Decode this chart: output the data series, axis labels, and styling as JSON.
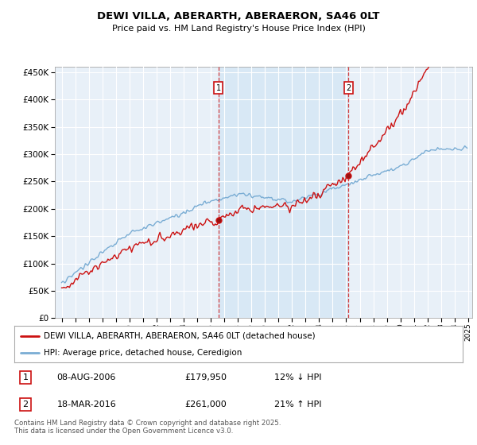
{
  "title": "DEWI VILLA, ABERARTH, ABERAERON, SA46 0LT",
  "subtitle": "Price paid vs. HM Land Registry's House Price Index (HPI)",
  "sale1_date": "08-AUG-2006",
  "sale1_price": 179950,
  "sale2_date": "18-MAR-2016",
  "sale2_price": 261000,
  "sale1_hpi_pct": "12% ↓ HPI",
  "sale2_hpi_pct": "21% ↑ HPI",
  "legend_line1": "DEWI VILLA, ABERARTH, ABERAERON, SA46 0LT (detached house)",
  "legend_line2": "HPI: Average price, detached house, Ceredigion",
  "footer": "Contains HM Land Registry data © Crown copyright and database right 2025.\nThis data is licensed under the Open Government Licence v3.0.",
  "hpi_color": "#7aadd4",
  "price_color": "#cc1111",
  "shade_color": "#d8e8f5",
  "bg_color": "#e8f0f8",
  "grid_color": "#ffffff",
  "ylim_min": 0,
  "ylim_max": 460000
}
